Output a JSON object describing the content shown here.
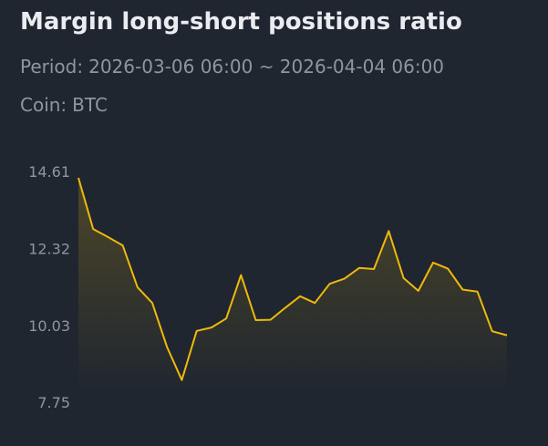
{
  "header": {
    "title": "Margin long-short positions ratio",
    "period_label": "Period:",
    "period_value": "2026-03-06 06:00 ~ 2026-04-04 06:00",
    "coin_label": "Coin:",
    "coin_value": "BTC"
  },
  "colors": {
    "background": "#1f2630",
    "line": "#f0b90b",
    "text": "#eaecef",
    "muted": "#8f96a0"
  },
  "chart_data": {
    "type": "area",
    "ytick_labels": [
      "14.61",
      "12.32",
      "10.03",
      "7.75"
    ],
    "yticks": [
      14.61,
      12.32,
      10.03,
      7.75
    ],
    "ylim": [
      7.75,
      14.61
    ],
    "grid": false,
    "series": [
      {
        "values": [
          14.42,
          12.9,
          12.66,
          12.41,
          11.17,
          10.7,
          9.39,
          8.41,
          9.87,
          9.97,
          10.24,
          11.53,
          10.19,
          10.2,
          10.56,
          10.9,
          10.7,
          11.27,
          11.42,
          11.74,
          11.71,
          12.84,
          11.44,
          11.06,
          11.9,
          11.72,
          11.1,
          11.04,
          9.86,
          9.74
        ]
      }
    ]
  }
}
